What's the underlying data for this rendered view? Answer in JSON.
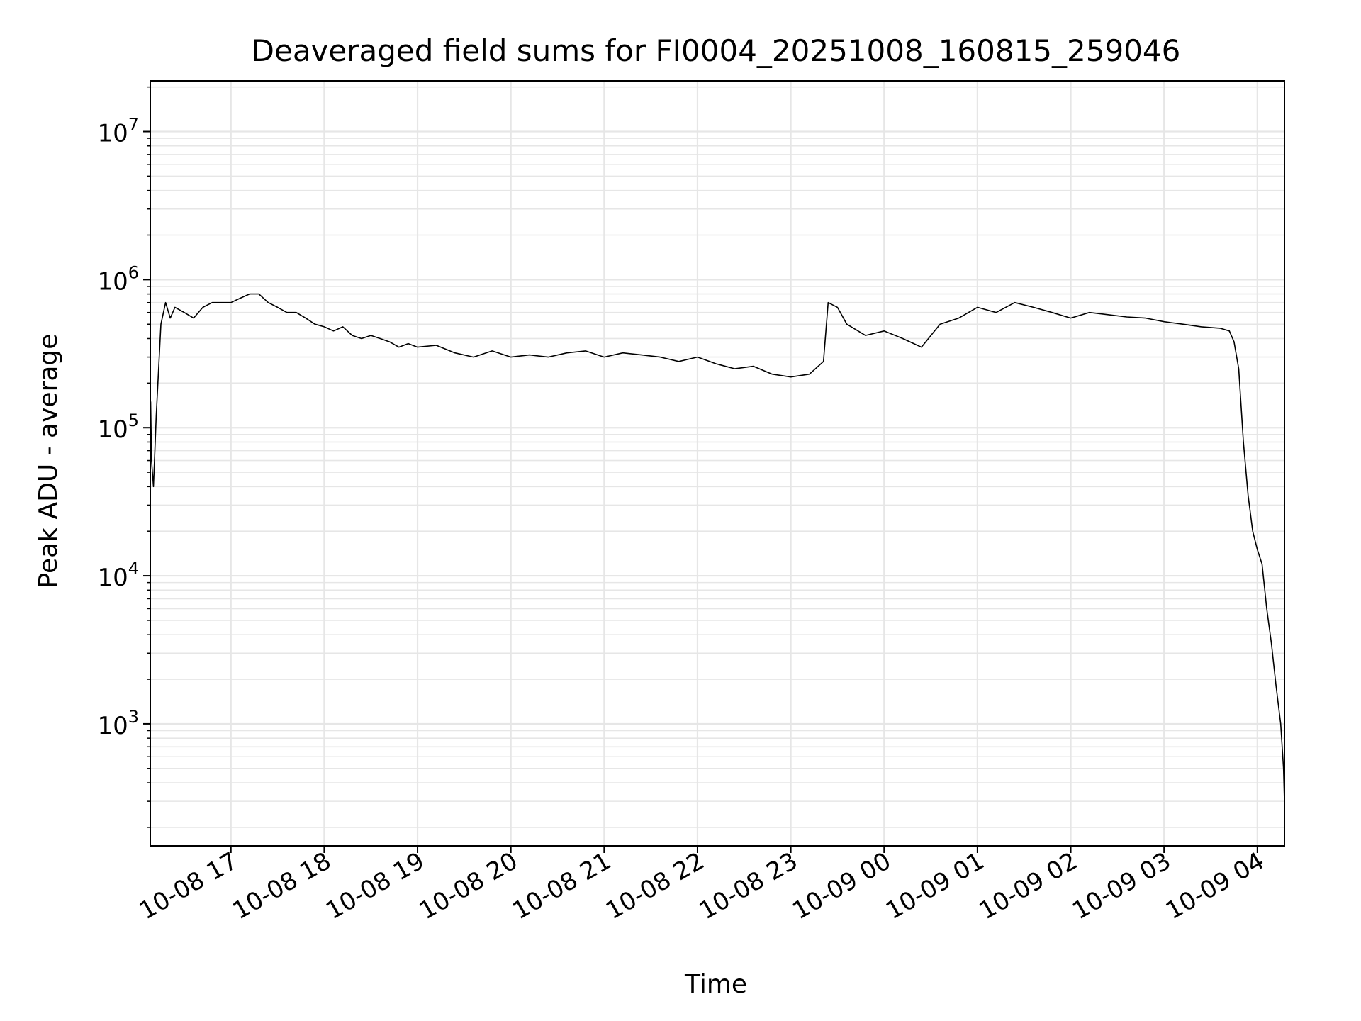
{
  "chart_data": {
    "type": "line",
    "title": "Deaveraged field sums for FI0004_20251008_160815_259046",
    "xlabel": "Time",
    "ylabel": "Peak ADU - average",
    "yscale": "log",
    "ylim": [
      150,
      22000000
    ],
    "xlim_hours": [
      16.136,
      28.29
    ],
    "grid": true,
    "line_color": "#000000",
    "grid_color": "#e6e6e6",
    "x_ticks": [
      {
        "label": "10-08 17",
        "hour": 17
      },
      {
        "label": "10-08 18",
        "hour": 18
      },
      {
        "label": "10-08 19",
        "hour": 19
      },
      {
        "label": "10-08 20",
        "hour": 20
      },
      {
        "label": "10-08 21",
        "hour": 21
      },
      {
        "label": "10-08 22",
        "hour": 22
      },
      {
        "label": "10-08 23",
        "hour": 23
      },
      {
        "label": "10-09 00",
        "hour": 24
      },
      {
        "label": "10-09 01",
        "hour": 25
      },
      {
        "label": "10-09 02",
        "hour": 26
      },
      {
        "label": "10-09 03",
        "hour": 27
      },
      {
        "label": "10-09 04",
        "hour": 28
      }
    ],
    "y_ticks": [
      {
        "base": "10",
        "exp": "3",
        "value": 1000
      },
      {
        "base": "10",
        "exp": "4",
        "value": 10000
      },
      {
        "base": "10",
        "exp": "5",
        "value": 100000
      },
      {
        "base": "10",
        "exp": "6",
        "value": 1000000
      },
      {
        "base": "10",
        "exp": "7",
        "value": 10000000
      }
    ],
    "series": [
      {
        "name": "Peak ADU - average",
        "x_hours": [
          16.14,
          16.15,
          16.17,
          16.2,
          16.25,
          16.3,
          16.35,
          16.4,
          16.5,
          16.6,
          16.7,
          16.8,
          16.9,
          17.0,
          17.1,
          17.2,
          17.3,
          17.4,
          17.5,
          17.6,
          17.7,
          17.8,
          17.9,
          18.0,
          18.1,
          18.2,
          18.3,
          18.4,
          18.5,
          18.6,
          18.7,
          18.8,
          18.9,
          19.0,
          19.2,
          19.4,
          19.6,
          19.8,
          20.0,
          20.2,
          20.4,
          20.6,
          20.8,
          21.0,
          21.2,
          21.4,
          21.6,
          21.8,
          22.0,
          22.2,
          22.4,
          22.6,
          22.8,
          23.0,
          23.2,
          23.35,
          23.4,
          23.5,
          23.6,
          23.8,
          24.0,
          24.2,
          24.4,
          24.6,
          24.8,
          25.0,
          25.2,
          25.4,
          25.6,
          25.8,
          26.0,
          26.2,
          26.4,
          26.6,
          26.8,
          27.0,
          27.2,
          27.4,
          27.6,
          27.7,
          27.75,
          27.8,
          27.85,
          27.9,
          27.95,
          28.0,
          28.05,
          28.1,
          28.15,
          28.2,
          28.25,
          28.28,
          28.29
        ],
        "values": [
          150000,
          60000,
          40000,
          120000,
          500000,
          700000,
          550000,
          650000,
          600000,
          550000,
          650000,
          700000,
          700000,
          700000,
          750000,
          800000,
          800000,
          700000,
          650000,
          600000,
          600000,
          550000,
          500000,
          480000,
          450000,
          480000,
          420000,
          400000,
          420000,
          400000,
          380000,
          350000,
          370000,
          350000,
          360000,
          320000,
          300000,
          330000,
          300000,
          310000,
          300000,
          320000,
          330000,
          300000,
          320000,
          310000,
          300000,
          280000,
          300000,
          270000,
          250000,
          260000,
          230000,
          220000,
          230000,
          280000,
          700000,
          650000,
          500000,
          420000,
          450000,
          400000,
          350000,
          500000,
          550000,
          650000,
          600000,
          700000,
          650000,
          600000,
          550000,
          600000,
          580000,
          560000,
          550000,
          520000,
          500000,
          480000,
          470000,
          450000,
          380000,
          250000,
          80000,
          35000,
          20000,
          15000,
          12000,
          6000,
          3500,
          1800,
          1000,
          500,
          300
        ]
      }
    ]
  }
}
